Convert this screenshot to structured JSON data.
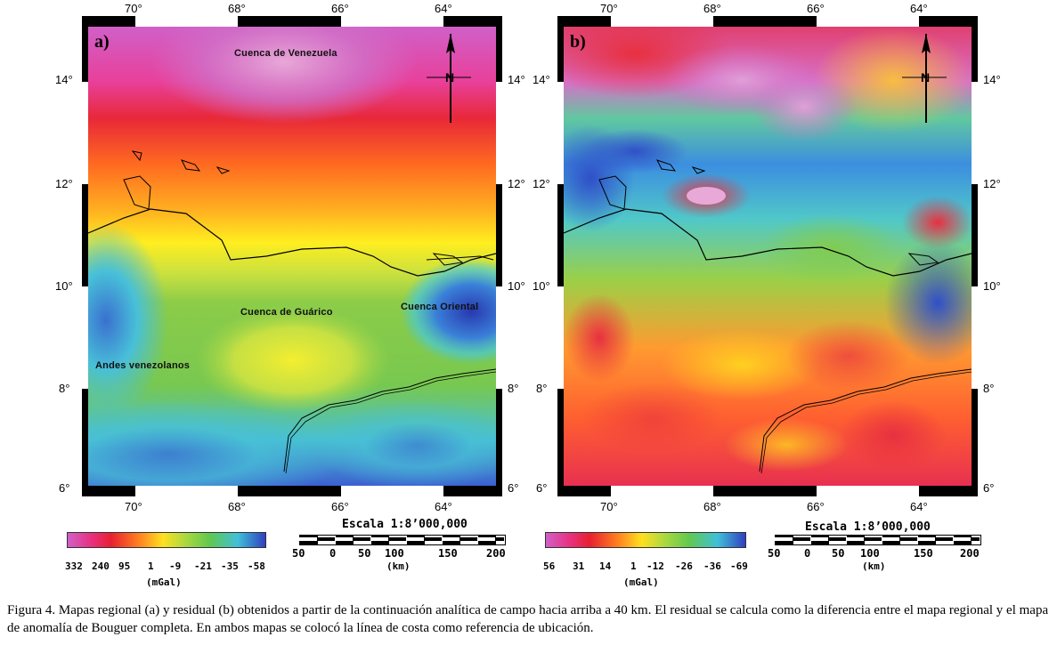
{
  "panels": [
    {
      "letter": "a)",
      "lon_labels": [
        "70°",
        "68°",
        "66°",
        "64°"
      ],
      "lat_labels": [
        "14°",
        "12°",
        "10°",
        "8°",
        "6°"
      ],
      "places": {
        "north": "Cuenca de Venezuela",
        "guarico": "Cuenca de Guárico",
        "oriental": "Cuenca Oriental",
        "andes": "Andes venezolanos"
      },
      "colorbar": {
        "labels": [
          "332",
          "240",
          "95",
          "1",
          "-9",
          "-21",
          "-35",
          "-58"
        ],
        "unit": "(mGal)"
      },
      "scale": {
        "title": "Escala 1:8’000,000",
        "ticks": [
          "50",
          "0",
          "50",
          "100",
          "150",
          "200"
        ],
        "unit": "(km)"
      }
    },
    {
      "letter": "b)",
      "lon_labels": [
        "70°",
        "68°",
        "66°",
        "64°"
      ],
      "lat_labels": [
        "14°",
        "12°",
        "10°",
        "8°",
        "6°"
      ],
      "colorbar": {
        "labels": [
          "56",
          "31",
          "14",
          "1",
          "-12",
          "-26",
          "-36",
          "-69"
        ],
        "unit": "(mGal)"
      },
      "scale": {
        "title": "Escala 1:8’000,000",
        "ticks": [
          "50",
          "0",
          "50",
          "100",
          "150",
          "200"
        ],
        "unit": "(km)"
      }
    }
  ],
  "colors": {
    "palette": [
      "#e070d0",
      "#e02040",
      "#ff7a1a",
      "#ffe81a",
      "#8ad040",
      "#3cc8d0",
      "#3040c0"
    ]
  },
  "caption": "Figura 4. Mapas regional (a) y residual (b) obtenidos a partir de la continuación analítica de campo hacia arriba a 40 km. El residual se calcula como la diferencia entre el mapa regional y el mapa de anomalía de Bouguer completa. En ambos mapas se colocó la línea de costa como referencia de ubicación."
}
